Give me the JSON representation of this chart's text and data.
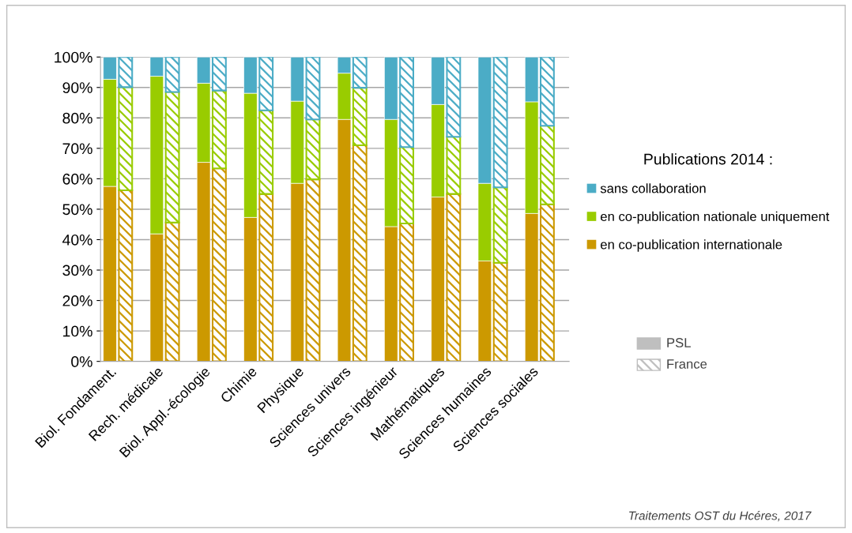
{
  "chart_data": {
    "type": "bar",
    "stacked": true,
    "categories": [
      "Biol. Fondament.",
      null,
      null,
      "Rech. médicale",
      null,
      null,
      "Biol. Appl.-écologie",
      null,
      null,
      "Chimie",
      null,
      null,
      "Physique",
      null,
      null,
      "Sciences univers",
      null,
      null,
      "Sciences ingénieur",
      null,
      null,
      "Mathématiques",
      null,
      null,
      "Sciences humaines",
      null,
      null,
      "Sciences sociales",
      null,
      null
    ],
    "series": [
      {
        "name": "en co-publication internationale",
        "color": "#cc9900",
        "values": [
          57.5,
          56.2,
          null,
          41.9,
          45.6,
          null,
          65.4,
          63.4,
          null,
          47.3,
          55.0,
          null,
          58.5,
          59.8,
          null,
          79.5,
          71.0,
          null,
          44.3,
          45.3,
          null,
          54.0,
          55.0,
          null,
          33.0,
          32.4,
          null,
          48.6,
          51.6,
          null
        ]
      },
      {
        "name": "en co-publication nationale uniquement",
        "color": "#99cc00",
        "values": [
          35.2,
          33.9,
          null,
          51.8,
          42.9,
          null,
          26.0,
          25.6,
          null,
          40.8,
          27.5,
          null,
          27.0,
          19.7,
          null,
          15.2,
          18.9,
          null,
          35.2,
          25.1,
          null,
          30.4,
          18.8,
          null,
          25.5,
          24.8,
          null,
          36.7,
          25.8,
          null
        ]
      },
      {
        "name": "sans collaboration",
        "color": "#4bacc6",
        "values": [
          7.3,
          9.9,
          null,
          6.3,
          11.5,
          null,
          8.6,
          11.0,
          null,
          11.9,
          17.5,
          null,
          14.5,
          20.5,
          null,
          5.3,
          10.1,
          null,
          20.5,
          29.6,
          null,
          15.6,
          26.2,
          null,
          41.5,
          42.8,
          null,
          14.7,
          22.6,
          null
        ]
      }
    ],
    "ylim": [
      0,
      100
    ],
    "yticks": [
      {
        "value": 0,
        "label": "0%"
      },
      {
        "value": 10,
        "label": "10%"
      },
      {
        "value": 20,
        "label": "20%"
      },
      {
        "value": 30,
        "label": "30%"
      },
      {
        "value": 40,
        "label": "40%"
      },
      {
        "value": 50,
        "label": "50%"
      },
      {
        "value": 60,
        "label": "60%"
      },
      {
        "value": 70,
        "label": "70%"
      },
      {
        "value": 80,
        "label": "80%"
      },
      {
        "value": 90,
        "label": "90%"
      },
      {
        "value": 100,
        "label": "100%"
      }
    ],
    "grid": "y",
    "legend": "right",
    "legend_title": "Publications 2014 :",
    "annotations": [
      "PSL",
      "France",
      "Traitements OST du Hcéres, 2017"
    ]
  }
}
